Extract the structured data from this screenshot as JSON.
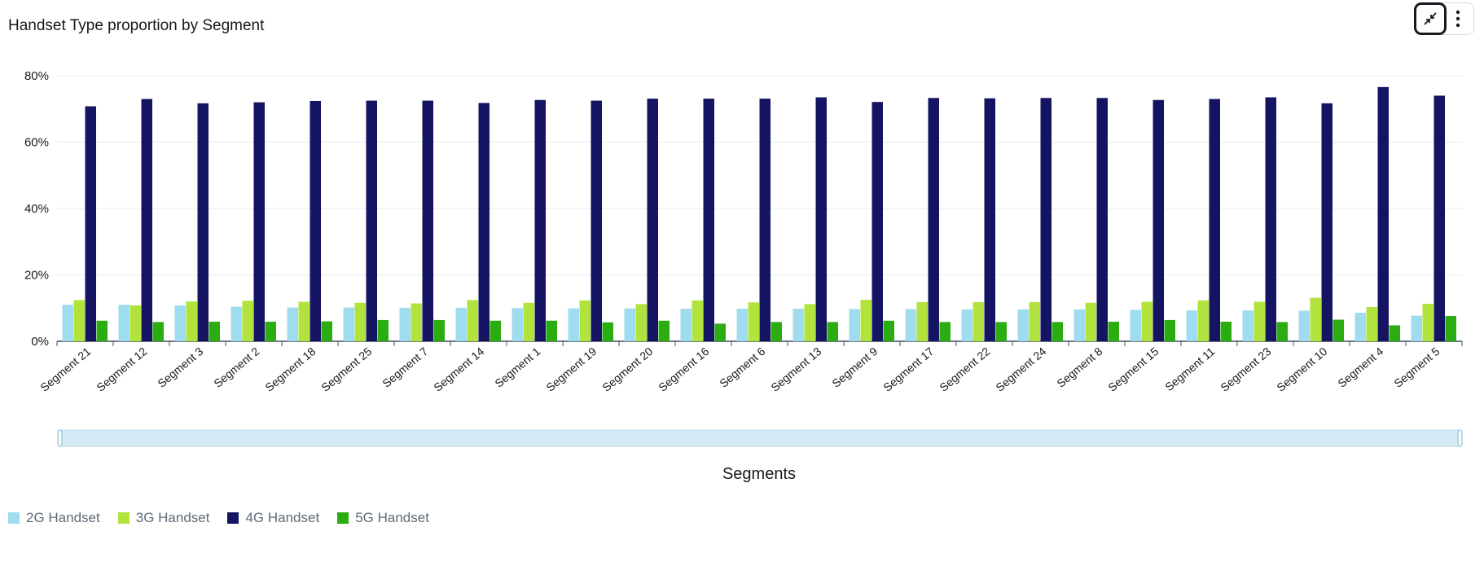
{
  "title": "Handset Type proportion by Segment",
  "toolbar": {
    "collapse_icon": "collapse-arrows-icon",
    "more_icon": "vertical-ellipsis-icon"
  },
  "colors": {
    "2G Handset": "#9fdcef",
    "3G Handset": "#b1e33c",
    "4G Handset": "#141462",
    "5G Handset": "#2bad12",
    "scrollbar": "#d6ebf6"
  },
  "chart_data": {
    "type": "bar",
    "title": "Handset Type proportion by Segment",
    "xlabel": "Segments",
    "ylabel": "",
    "ylim": [
      0,
      80
    ],
    "ytick_labels": [
      "0%",
      "20%",
      "40%",
      "60%",
      "80%"
    ],
    "grid": true,
    "legend_position": "bottom-left",
    "categories": [
      "Segment 21",
      "Segment 12",
      "Segment 3",
      "Segment 2",
      "Segment 18",
      "Segment 25",
      "Segment 7",
      "Segment 14",
      "Segment 1",
      "Segment 19",
      "Segment 20",
      "Segment 16",
      "Segment 6",
      "Segment 13",
      "Segment 9",
      "Segment 17",
      "Segment 22",
      "Segment 24",
      "Segment 8",
      "Segment 15",
      "Segment 11",
      "Segment 23",
      "Segment 10",
      "Segment 4",
      "Segment 5"
    ],
    "series": [
      {
        "name": "2G Handset",
        "values": [
          11,
          11,
          10.8,
          10.4,
          10.2,
          10.2,
          10.1,
          10.1,
          10,
          9.9,
          9.9,
          9.8,
          9.8,
          9.8,
          9.7,
          9.7,
          9.6,
          9.6,
          9.6,
          9.5,
          9.3,
          9.3,
          9.2,
          8.6,
          7.7
        ]
      },
      {
        "name": "3G Handset",
        "values": [
          12.4,
          10.8,
          12,
          12.2,
          11.9,
          11.6,
          11.4,
          12.4,
          11.6,
          12.3,
          11.2,
          12.3,
          11.7,
          11.2,
          12.5,
          11.8,
          11.8,
          11.8,
          11.6,
          11.9,
          12.3,
          11.9,
          13.1,
          10.3,
          11.3
        ]
      },
      {
        "name": "4G Handset",
        "values": [
          70.8,
          73,
          71.7,
          72,
          72.4,
          72.5,
          72.5,
          71.8,
          72.7,
          72.5,
          73.1,
          73.1,
          73.1,
          73.5,
          72.1,
          73.3,
          73.2,
          73.3,
          73.3,
          72.7,
          73,
          73.5,
          71.7,
          76.6,
          74
        ]
      },
      {
        "name": "5G Handset",
        "values": [
          6.2,
          5.8,
          5.9,
          5.9,
          6,
          6.4,
          6.4,
          6.2,
          6.2,
          5.7,
          6.2,
          5.3,
          5.8,
          5.8,
          6.2,
          5.8,
          5.8,
          5.8,
          5.9,
          6.4,
          5.9,
          5.8,
          6.5,
          4.8,
          7.6
        ]
      }
    ]
  }
}
